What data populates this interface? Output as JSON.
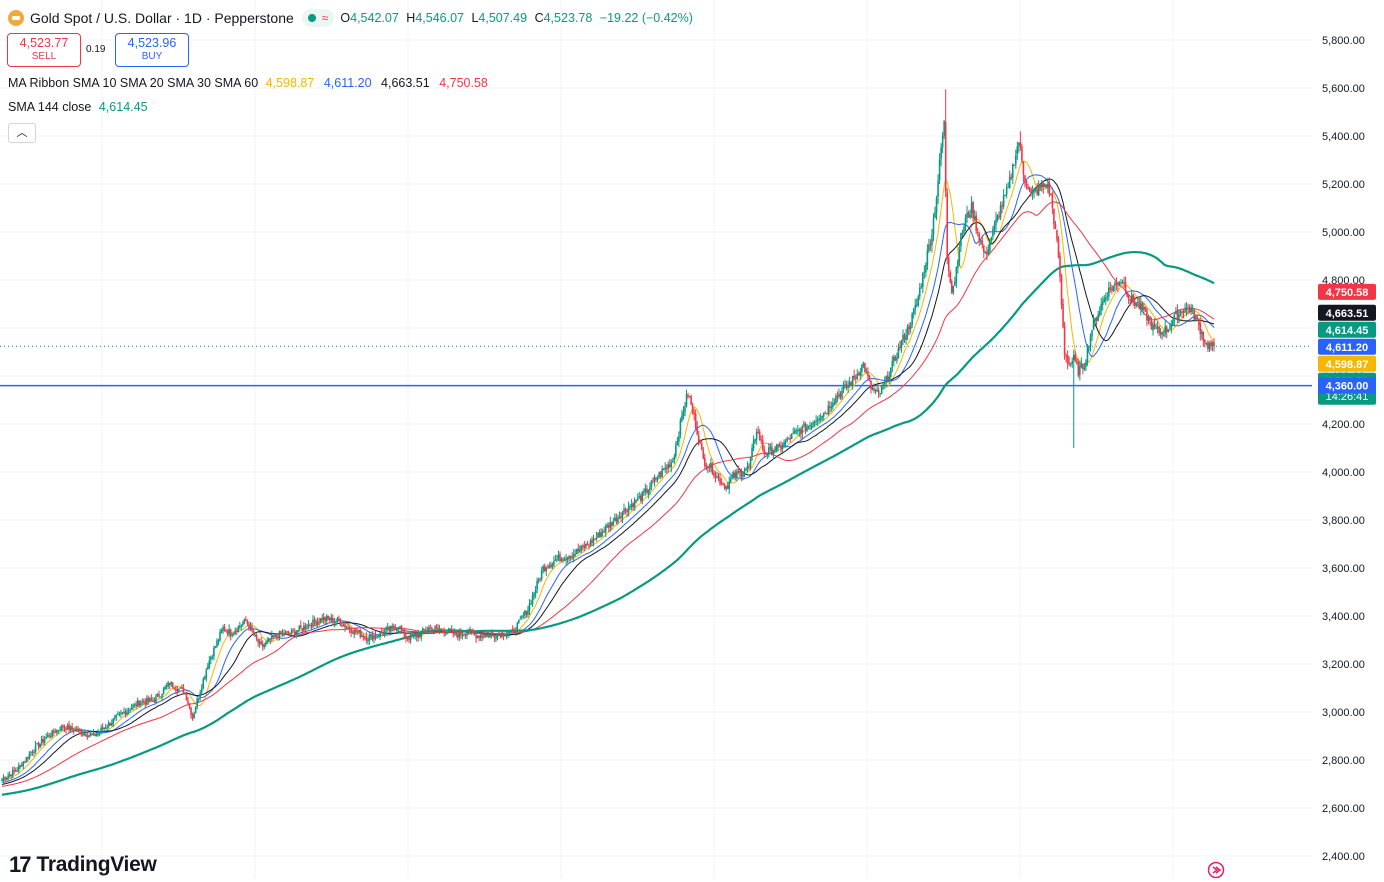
{
  "header": {
    "symbol_title": "Gold Spot / U.S. Dollar · 1D · Pepperstone",
    "status_wave": "≈",
    "ohlc": [
      {
        "label": "O",
        "value": "4,542.07"
      },
      {
        "label": "H",
        "value": "4,546.07"
      },
      {
        "label": "L",
        "value": "4,507.49"
      },
      {
        "label": "C",
        "value": "4,523.78"
      },
      {
        "label": "",
        "value": "−19.22 (−0.42%)"
      }
    ]
  },
  "trade": {
    "sell_price": "4,523.77",
    "sell_label": "SELL",
    "spread": "0.19",
    "buy_price": "4,523.96",
    "buy_label": "BUY"
  },
  "legend": {
    "ribbon_name": "MA Ribbon",
    "ribbon_params": "SMA 10 SMA 20 SMA 30 SMA 60",
    "ribbon_values": [
      "4,598.87",
      "4,611.20",
      "4,663.51",
      "4,750.58"
    ],
    "sma_name": "SMA 144 close",
    "sma_value": "4,614.45",
    "collapse_icon": "chevron-up-icon"
  },
  "branding": {
    "name": "TradingView",
    "mark": "17"
  },
  "colors": {
    "up": "#089981",
    "down": "#f23645",
    "sma10": "#f5b700",
    "sma20": "#2962ff",
    "sma30": "#131722",
    "sma60": "#f23645",
    "sma144": "#089981",
    "hline": "#2962ff"
  },
  "chart_data": {
    "type": "candlestick",
    "symbol": "Gold Spot / U.S. Dollar",
    "interval": "1D",
    "ylim": [
      2400,
      5800
    ],
    "y_ticks": [
      "5,800.00",
      "5,600.00",
      "5,400.00",
      "5,200.00",
      "5,000.00",
      "4,800.00",
      "4,600.00",
      "4,400.00",
      "4,200.00",
      "4,000.00",
      "3,800.00",
      "3,600.00",
      "3,400.00",
      "3,200.00",
      "3,000.00",
      "2,800.00",
      "2,600.00",
      "2,400.00"
    ],
    "last_price": 4523.78,
    "countdown": "14:26:41",
    "horizontal_line": 4360.0,
    "horizontal_line_label": "4,360.00",
    "price_labels": [
      {
        "text": "4,750.58",
        "value": 4750.58,
        "color": "#f23645"
      },
      {
        "text": "4,663.51",
        "value": 4663.51,
        "color": "#131722"
      },
      {
        "text": "4,614.45",
        "value": 4614.45,
        "color": "#089981"
      },
      {
        "text": "4,611.20",
        "value": 4611.2,
        "color": "#2962ff"
      },
      {
        "text": "4,598.87",
        "value": 4598.87,
        "color": "#f5b700"
      },
      {
        "text": "4,523.78",
        "value": 4523.78,
        "color": "#089981"
      }
    ],
    "close_anchors": [
      [
        0,
        2720
      ],
      [
        10,
        2760
      ],
      [
        20,
        2840
      ],
      [
        30,
        2900
      ],
      [
        40,
        2940
      ],
      [
        50,
        2920
      ],
      [
        60,
        2900
      ],
      [
        70,
        2950
      ],
      [
        80,
        3000
      ],
      [
        90,
        3040
      ],
      [
        100,
        3050
      ],
      [
        110,
        3120
      ],
      [
        120,
        3080
      ],
      [
        125,
        2980
      ],
      [
        135,
        3200
      ],
      [
        145,
        3350
      ],
      [
        150,
        3330
      ],
      [
        160,
        3380
      ],
      [
        165,
        3320
      ],
      [
        170,
        3270
      ],
      [
        180,
        3320
      ],
      [
        190,
        3330
      ],
      [
        200,
        3360
      ],
      [
        210,
        3390
      ],
      [
        220,
        3380
      ],
      [
        230,
        3340
      ],
      [
        240,
        3310
      ],
      [
        250,
        3330
      ],
      [
        260,
        3360
      ],
      [
        265,
        3310
      ],
      [
        270,
        3310
      ],
      [
        280,
        3350
      ],
      [
        290,
        3340
      ],
      [
        300,
        3320
      ],
      [
        305,
        3340
      ],
      [
        310,
        3320
      ],
      [
        320,
        3320
      ],
      [
        330,
        3330
      ],
      [
        335,
        3330
      ],
      [
        345,
        3430
      ],
      [
        355,
        3600
      ],
      [
        365,
        3640
      ],
      [
        375,
        3660
      ],
      [
        385,
        3700
      ],
      [
        395,
        3760
      ],
      [
        400,
        3790
      ],
      [
        410,
        3850
      ],
      [
        420,
        3900
      ],
      [
        430,
        3980
      ],
      [
        440,
        4050
      ],
      [
        447,
        4260
      ],
      [
        450,
        4330
      ],
      [
        455,
        4200
      ],
      [
        460,
        4050
      ],
      [
        465,
        4020
      ],
      [
        470,
        3970
      ],
      [
        475,
        3940
      ],
      [
        480,
        3980
      ],
      [
        490,
        4020
      ],
      [
        495,
        4180
      ],
      [
        500,
        4080
      ],
      [
        510,
        4100
      ],
      [
        520,
        4160
      ],
      [
        530,
        4200
      ],
      [
        535,
        4230
      ],
      [
        540,
        4250
      ],
      [
        545,
        4300
      ],
      [
        555,
        4360
      ],
      [
        560,
        4400
      ],
      [
        565,
        4450
      ],
      [
        570,
        4350
      ],
      [
        575,
        4320
      ],
      [
        580,
        4380
      ],
      [
        585,
        4460
      ],
      [
        590,
        4540
      ],
      [
        595,
        4610
      ],
      [
        600,
        4700
      ],
      [
        605,
        4850
      ],
      [
        610,
        5000
      ],
      [
        613,
        5150
      ],
      [
        616,
        5350
      ],
      [
        618,
        5450
      ],
      [
        620,
        4900
      ],
      [
        623,
        4760
      ],
      [
        625,
        4800
      ],
      [
        628,
        4950
      ],
      [
        632,
        5050
      ],
      [
        636,
        5100
      ],
      [
        640,
        5000
      ],
      [
        645,
        4900
      ],
      [
        650,
        5000
      ],
      [
        655,
        5100
      ],
      [
        660,
        5180
      ],
      [
        664,
        5300
      ],
      [
        667,
        5380
      ],
      [
        670,
        5250
      ],
      [
        675,
        5150
      ],
      [
        680,
        5180
      ],
      [
        685,
        5200
      ],
      [
        688,
        5150
      ],
      [
        690,
        5050
      ],
      [
        693,
        4900
      ],
      [
        695,
        4700
      ],
      [
        697,
        4500
      ],
      [
        700,
        4450
      ],
      [
        703,
        4470
      ],
      [
        706,
        4420
      ],
      [
        710,
        4450
      ],
      [
        715,
        4600
      ],
      [
        720,
        4680
      ],
      [
        725,
        4750
      ],
      [
        730,
        4780
      ],
      [
        735,
        4800
      ],
      [
        740,
        4720
      ],
      [
        745,
        4700
      ],
      [
        750,
        4660
      ],
      [
        755,
        4600
      ],
      [
        760,
        4580
      ],
      [
        765,
        4600
      ],
      [
        770,
        4650
      ],
      [
        775,
        4680
      ],
      [
        780,
        4680
      ],
      [
        785,
        4610
      ],
      [
        790,
        4530
      ],
      [
        795,
        4523.78
      ]
    ],
    "notes_high_wicks": [
      [
        619,
        5595
      ],
      [
        668,
        5420
      ]
    ],
    "notes_low_wicks": [
      [
        703,
        4100
      ]
    ]
  }
}
